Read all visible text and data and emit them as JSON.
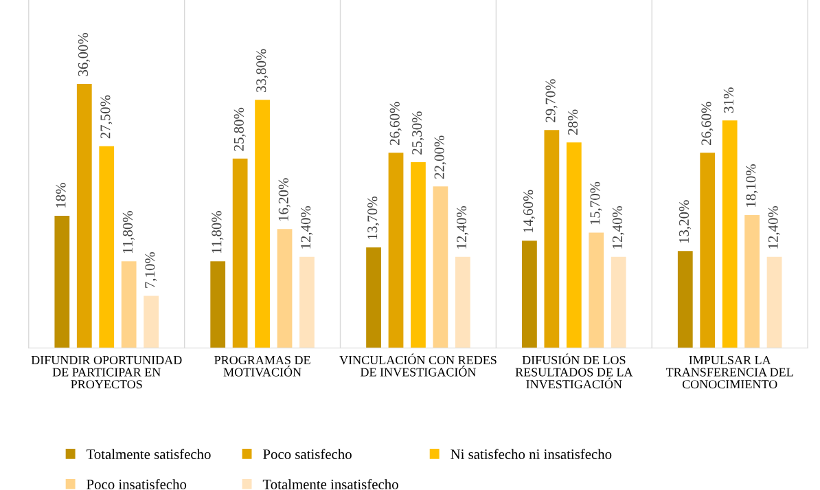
{
  "chart_data": {
    "type": "bar",
    "categories": [
      "DIFUNDIR OPORTUNIDAD DE PARTICIPAR EN PROYECTOS",
      "PROGRAMAS DE MOTIVACIÓN",
      "VINCULACIÓN CON REDES DE INVESTIGACIÓN",
      "DIFUSIÓN DE LOS RESULTADOS DE LA INVESTIGACIÓN",
      "IMPULSAR LA TRANSFERENCIA DEL CONOCIMIENTO"
    ],
    "series": [
      {
        "name": "Totalmente satisfecho",
        "color": "#bf9000",
        "values": [
          18,
          11.8,
          13.7,
          14.6,
          13.2
        ],
        "value_labels": [
          "18%",
          "11,80%",
          "13,70%",
          "14,60%",
          "13,20%"
        ]
      },
      {
        "name": "Poco satisfecho",
        "color": "#e2a500",
        "values": [
          36,
          25.8,
          26.6,
          29.7,
          26.6
        ],
        "value_labels": [
          "36,00%",
          "25,80%",
          "26,60%",
          "29,70%",
          "26,60%"
        ]
      },
      {
        "name": "Ni satisfecho ni insatisfecho",
        "color": "#ffc000",
        "values": [
          27.5,
          33.8,
          25.3,
          28,
          31
        ],
        "value_labels": [
          "27,50%",
          "33,80%",
          "25,30%",
          "28%",
          "31%"
        ]
      },
      {
        "name": "Poco insatisfecho",
        "color": "#ffd38a",
        "values": [
          11.8,
          16.2,
          22,
          15.7,
          18.1
        ],
        "value_labels": [
          "11,80%",
          "16,20%",
          "22,00%",
          "15,70%",
          "18,10%"
        ]
      },
      {
        "name": "Totalmente insatisfecho",
        "color": "#ffe3bd",
        "values": [
          7.1,
          12.4,
          12.4,
          12.4,
          12.4
        ],
        "value_labels": [
          "7,10%",
          "12,40%",
          "12,40%",
          "12,40%",
          "12,40%"
        ]
      }
    ],
    "grid": "x",
    "legend": "bottom"
  }
}
